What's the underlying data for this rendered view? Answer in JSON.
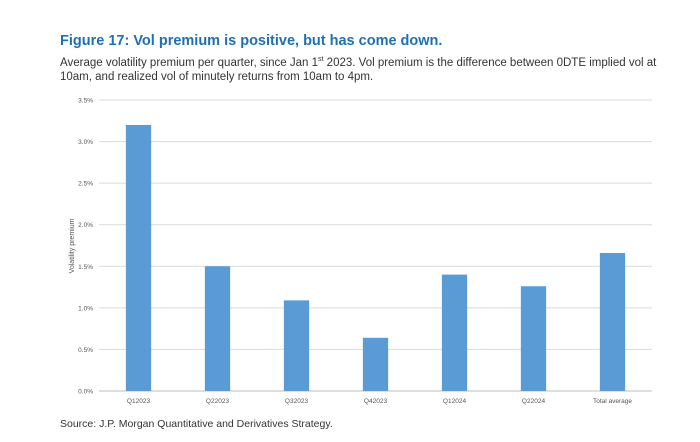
{
  "header": {
    "title": "Figure 17: Vol premium is positive, but has come down.",
    "subtitle_pre": "Average volatility premium per quarter, since Jan 1",
    "subtitle_sup": "st",
    "subtitle_post": " 2023. Vol premium is the difference between 0DTE implied vol at 10am, and realized vol of minutely returns from 10am to 4pm."
  },
  "footer": {
    "source": "Source: J.P. Morgan Quantitative and Derivatives Strategy."
  },
  "colors": {
    "bar": "#5b9bd5",
    "grid": "#d9d9d9",
    "axis": "#bfbfbf",
    "title": "#1f6fb5"
  },
  "chart_data": {
    "type": "bar",
    "categories": [
      "Q12023",
      "Q22023",
      "Q32023",
      "Q42023",
      "Q12024",
      "Q22024",
      "Total average"
    ],
    "values": [
      3.2,
      1.5,
      1.09,
      0.64,
      1.4,
      1.26,
      1.66
    ],
    "ylabel": "Volatility premium",
    "ylim": [
      0,
      3.5
    ],
    "yticks": [
      0,
      0.5,
      1.0,
      1.5,
      2.0,
      2.5,
      3.0,
      3.5
    ],
    "ytick_labels": [
      "0.0%",
      "0.5%",
      "1.0%",
      "1.5%",
      "2.0%",
      "2.5%",
      "3.0%",
      "3.5%"
    ],
    "grid": true,
    "legend": "none"
  }
}
